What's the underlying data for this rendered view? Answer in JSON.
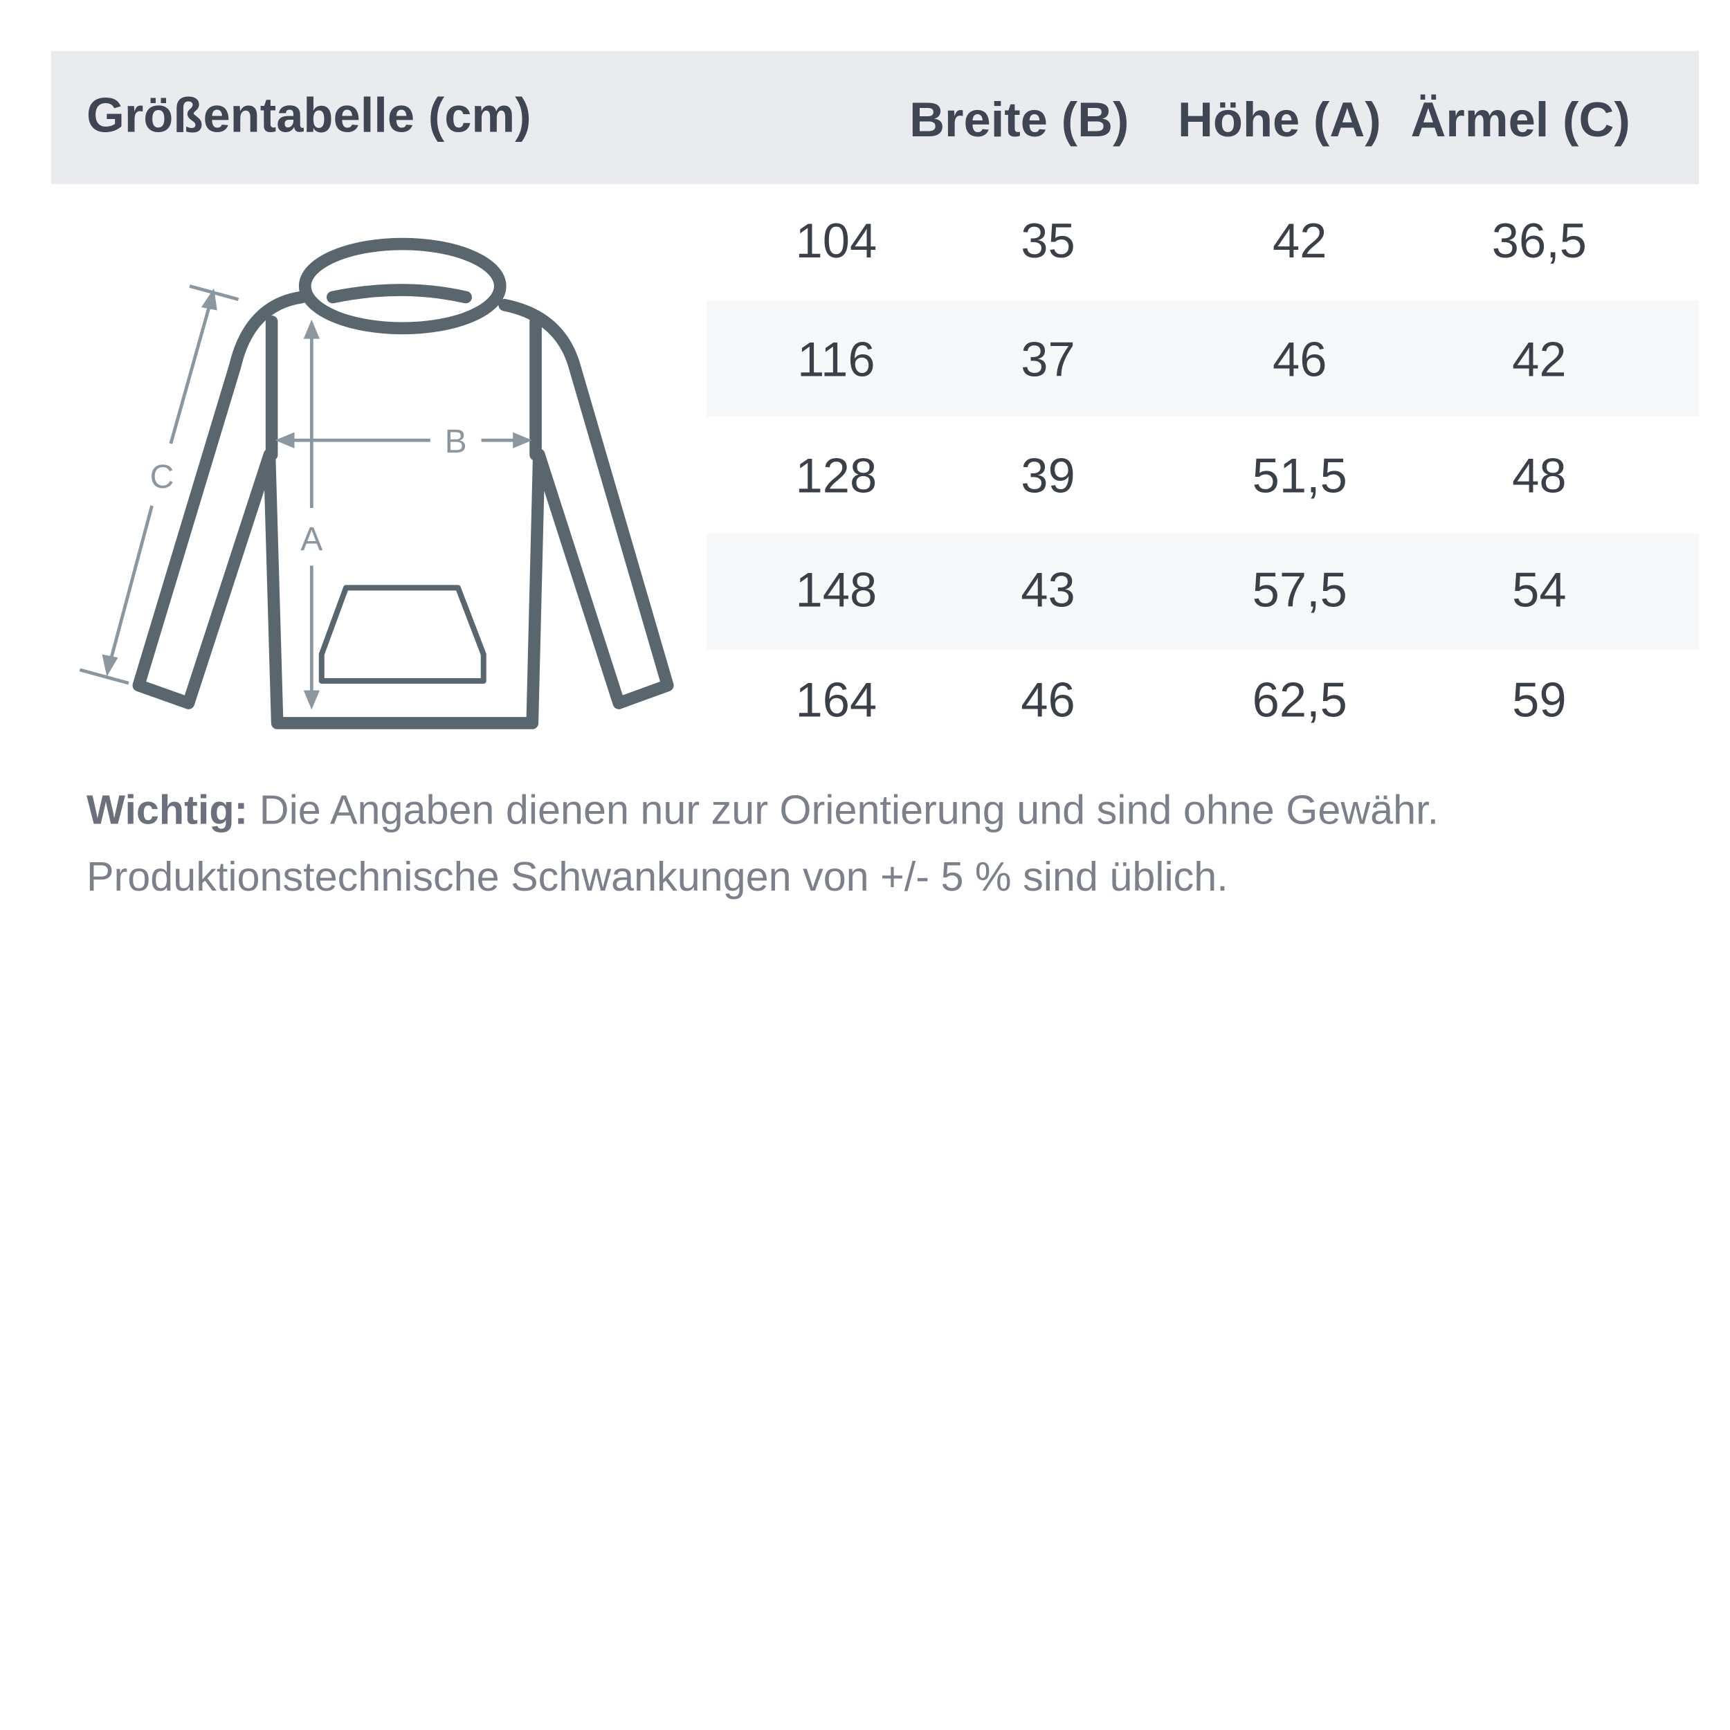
{
  "header": {
    "title": "Größentabelle (cm)",
    "columns": [
      "Breite (B)",
      "Höhe (A)",
      "Ärmel (C)"
    ]
  },
  "rows": [
    [
      "104",
      "35",
      "42",
      "36,5"
    ],
    [
      "116",
      "37",
      "46",
      "42"
    ],
    [
      "128",
      "39",
      "51,5",
      "48"
    ],
    [
      "148",
      "43",
      "57,5",
      "54"
    ],
    [
      "164",
      "46",
      "62,5",
      "59"
    ]
  ],
  "diagram": {
    "labels": {
      "a": "A",
      "b": "B",
      "c": "C"
    },
    "icon": "hoodie-icon"
  },
  "note": {
    "bold": "Wichtig:",
    "line1": "Die Angaben dienen nur zur Orientierung und sind ohne Gewähr.",
    "line2": "Produktionstechnische Schwankungen von +/- 5 % sind üblich."
  },
  "colors": {
    "header_bg": "#eaebef",
    "stripe": "#f7f8fa",
    "hoodie": "#5a666d",
    "arrows": "#8c969e"
  }
}
